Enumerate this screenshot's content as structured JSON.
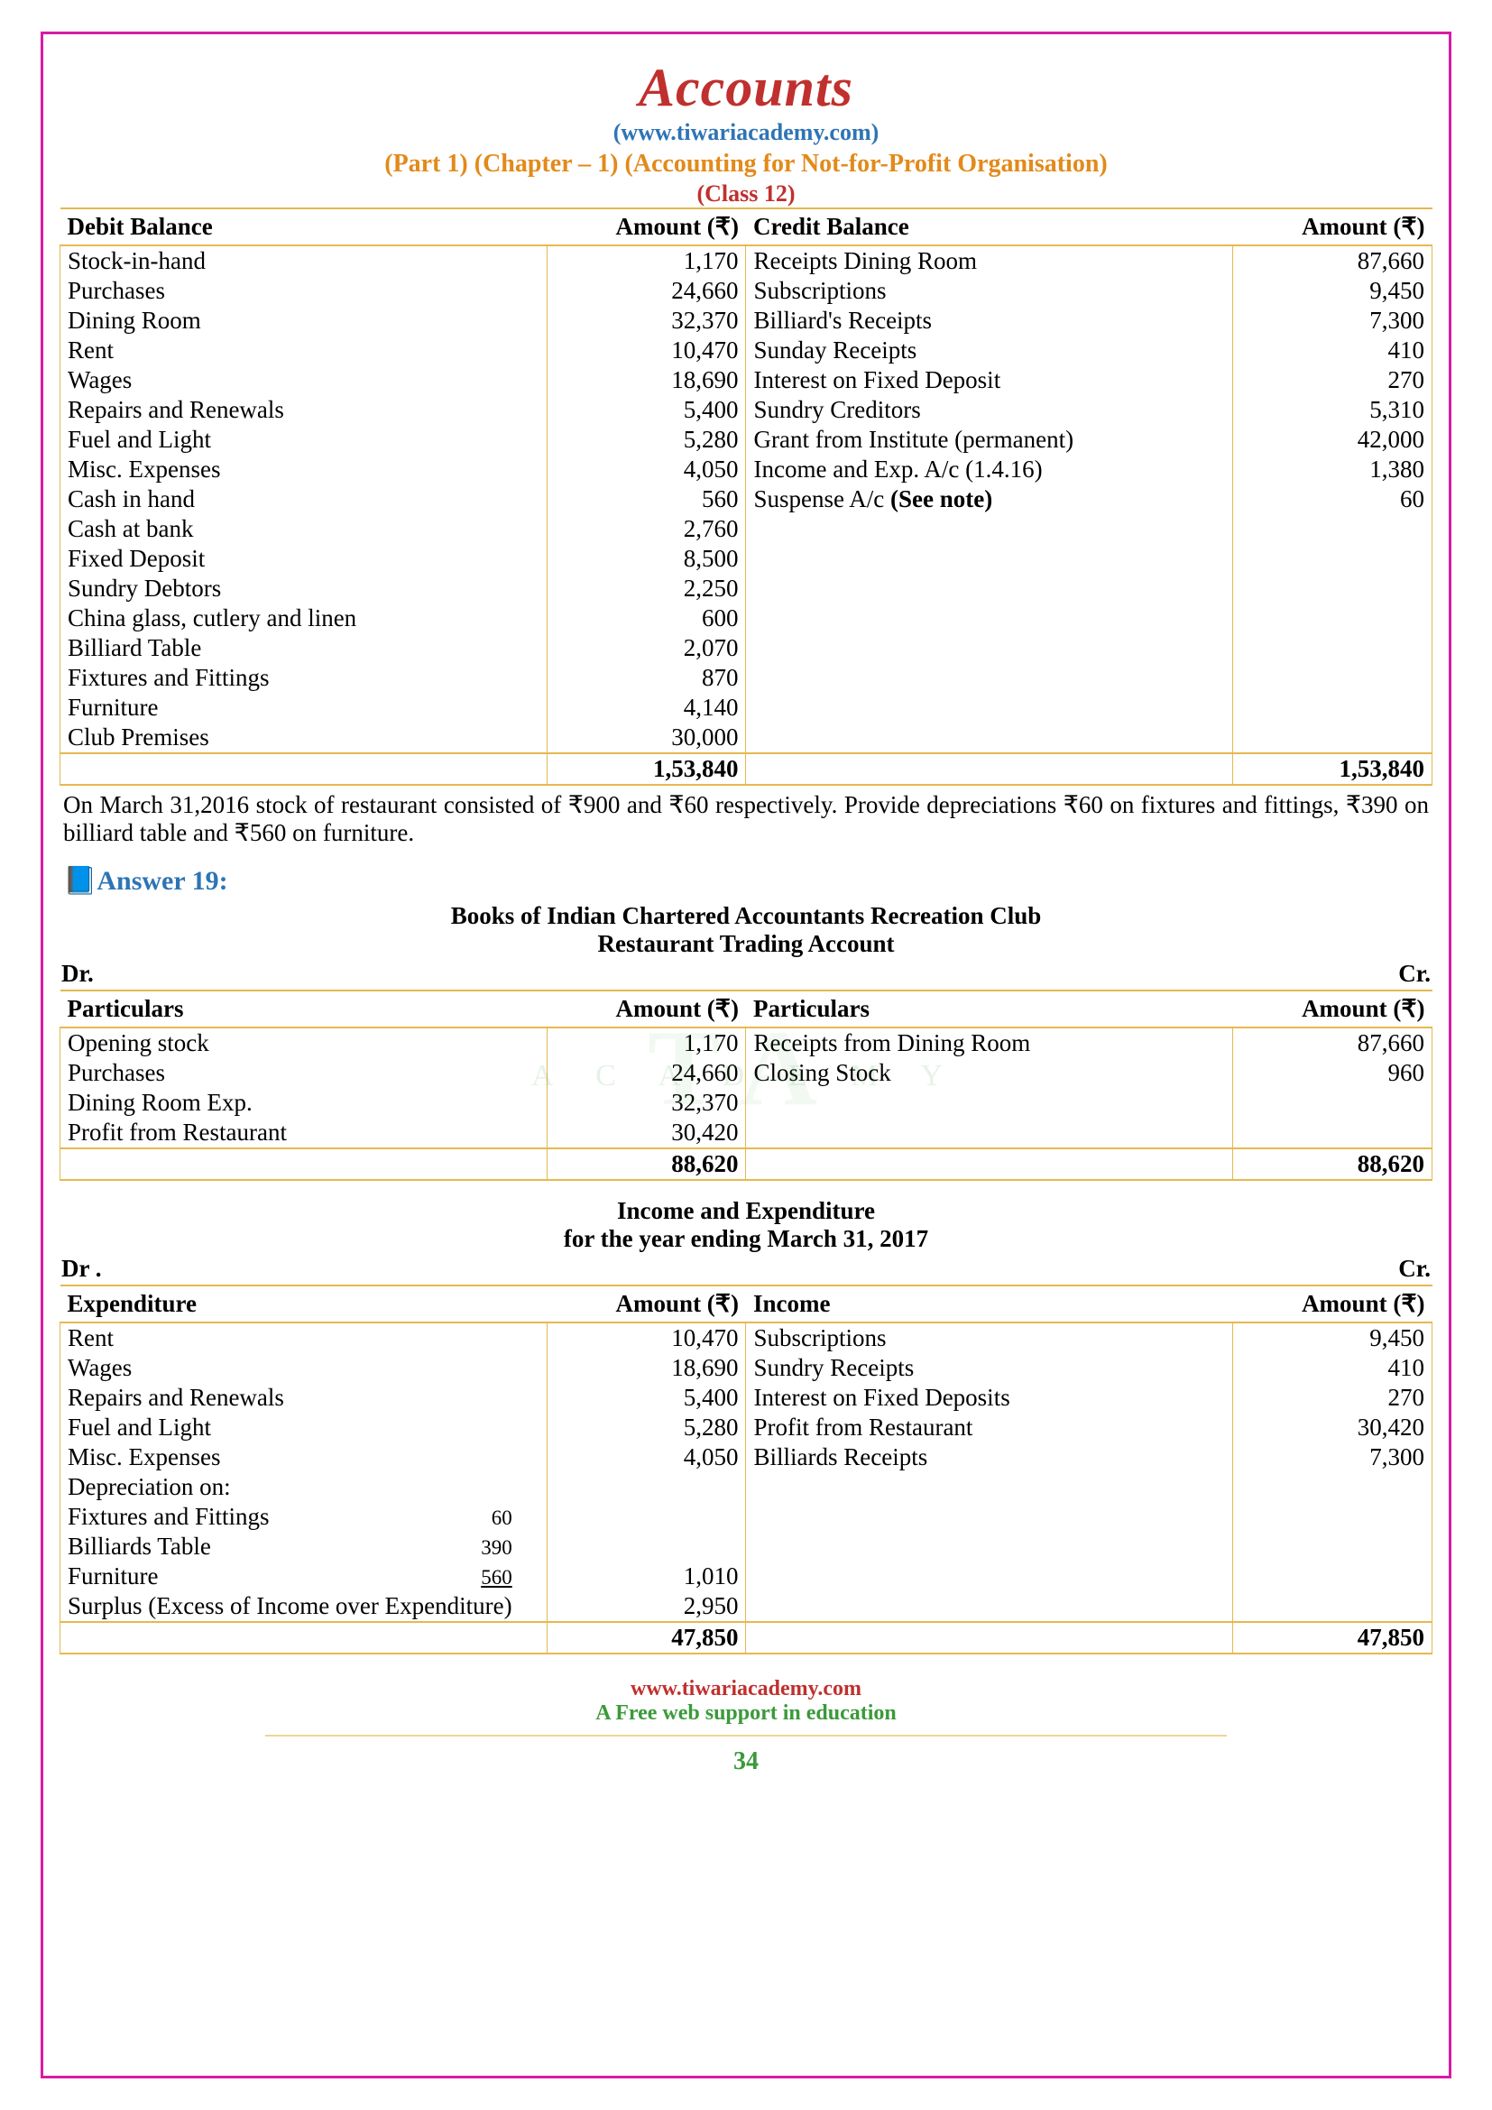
{
  "header": {
    "title": "Accounts",
    "site": "(www.tiwariacademy.com)",
    "chapter": "(Part 1) (Chapter – 1) (Accounting for Not-for-Profit Organisation)",
    "class": "(Class 12)"
  },
  "table1": {
    "head_debit": "Debit Balance",
    "head_amt_l": "Amount (₹)",
    "head_credit": "Credit Balance",
    "head_amt_r": "Amount  (₹)",
    "debit": [
      {
        "label": "Stock-in-hand",
        "amt": "1,170"
      },
      {
        "label": "Purchases",
        "amt": "24,660"
      },
      {
        "label": "Dining Room",
        "amt": "32,370"
      },
      {
        "label": "Rent",
        "amt": "10,470"
      },
      {
        "label": "Wages",
        "amt": "18,690"
      },
      {
        "label": "Repairs and Renewals",
        "amt": "5,400"
      },
      {
        "label": "Fuel and Light",
        "amt": "5,280"
      },
      {
        "label": "Misc. Expenses",
        "amt": "4,050"
      },
      {
        "label": "Cash in hand",
        "amt": "560"
      },
      {
        "label": "Cash at bank",
        "amt": "2,760"
      },
      {
        "label": "Fixed Deposit",
        "amt": "8,500"
      },
      {
        "label": "Sundry Debtors",
        "amt": "2,250"
      },
      {
        "label": "China glass, cutlery and linen",
        "amt": "600"
      },
      {
        "label": "Billiard Table",
        "amt": "2,070"
      },
      {
        "label": "Fixtures and Fittings",
        "amt": "870"
      },
      {
        "label": "Furniture",
        "amt": "4,140"
      },
      {
        "label": "Club Premises",
        "amt": "30,000"
      }
    ],
    "credit": [
      {
        "label": "Receipts Dining Room",
        "amt": "87,660"
      },
      {
        "label": "Subscriptions",
        "amt": "9,450"
      },
      {
        "label": "Billiard's Receipts",
        "amt": "7,300"
      },
      {
        "label": "Sunday Receipts",
        "amt": "410"
      },
      {
        "label": "Interest on Fixed Deposit",
        "amt": "270"
      },
      {
        "label": "Sundry Creditors",
        "amt": "5,310"
      },
      {
        "label": "Grant from Institute (permanent)",
        "amt": "42,000"
      },
      {
        "label": "Income and Exp. A/c (1.4.16)",
        "amt": "1,380"
      },
      {
        "label": "Suspense A/c (See note)",
        "amt": "60",
        "bold_note": true
      }
    ],
    "total": "1,53,840"
  },
  "note": "On March 31,2016 stock of restaurant consisted of ₹900 and ₹60 respectively. Provide depreciations ₹60 on fixtures and fittings, ₹390 on billiard table and ₹560 on furniture.",
  "answer_head": "Answer 19:",
  "books_title1": "Books of Indian Chartered Accountants Recreation Club",
  "books_title2": "Restaurant Trading Account",
  "dr": "Dr.",
  "cr": "Cr.",
  "dr_dot": "Dr .",
  "table2": {
    "h1": "Particulars",
    "h2": "Amount (₹)",
    "h3": "Particulars",
    "h4": "Amount (₹)",
    "left": [
      {
        "label": "Opening stock",
        "amt": "1,170"
      },
      {
        "label": "Purchases",
        "amt": "24,660"
      },
      {
        "label": "Dining Room Exp.",
        "amt": "32,370"
      },
      {
        "label": "Profit from Restaurant",
        "amt": "30,420"
      }
    ],
    "right": [
      {
        "label": "Receipts from Dining Room",
        "amt": "87,660"
      },
      {
        "label": "Closing Stock",
        "amt": "960"
      }
    ],
    "total": "88,620"
  },
  "ie_title1": "Income and Expenditure",
  "ie_title2": "for the year ending March 31, 2017",
  "table3": {
    "h1": "Expenditure",
    "h2": "Amount (₹)",
    "h3": "Income",
    "h4": "Amount (₹)",
    "left": [
      {
        "label": "Rent",
        "amt": "10,470"
      },
      {
        "label": "Wages",
        "amt": "18,690"
      },
      {
        "label": "Repairs and Renewals",
        "amt": "5,400"
      },
      {
        "label": "Fuel and Light",
        "amt": "5,280"
      },
      {
        "label": "Misc. Expenses",
        "amt": "4,050"
      },
      {
        "label": "Depreciation on:",
        "amt": ""
      },
      {
        "label": "Fixtures and Fittings",
        "sub": "60",
        "amt": ""
      },
      {
        "label": "Billiards Table",
        "sub": "390",
        "amt": ""
      },
      {
        "label": "Furniture",
        "sub": "560",
        "sub_under": true,
        "amt": "1,010"
      },
      {
        "label": "Surplus (Excess of Income over Expenditure)",
        "amt": "2,950"
      }
    ],
    "right": [
      {
        "label": "Subscriptions",
        "amt": "9,450"
      },
      {
        "label": "Sundry Receipts",
        "amt": "410"
      },
      {
        "label": "Interest on Fixed Deposits",
        "amt": "270"
      },
      {
        "label": "Profit from Restaurant",
        "amt": "30,420"
      },
      {
        "label": "Billiards Receipts",
        "amt": "7,300"
      }
    ],
    "total": "47,850"
  },
  "footer": {
    "site": "www.tiwariacademy.com",
    "tag": "A Free web support in education",
    "page": "34"
  },
  "watermark": "TA",
  "watermark2": "A C A D E M Y"
}
